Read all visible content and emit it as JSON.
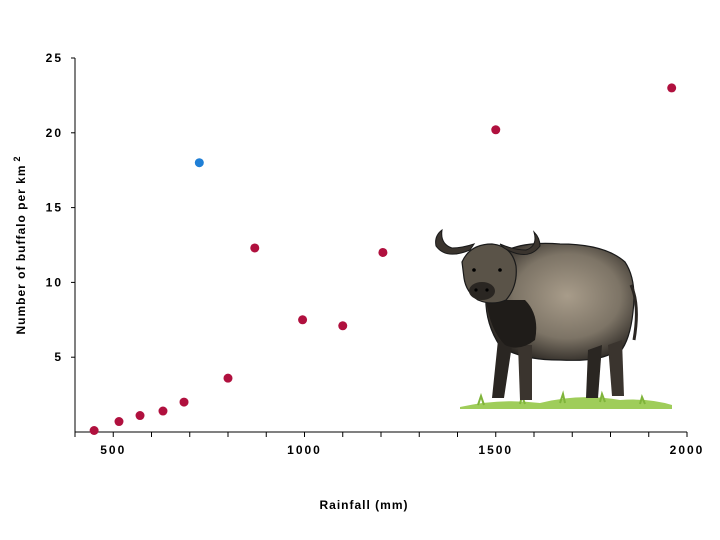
{
  "chart_data": {
    "type": "scatter",
    "title": "",
    "xlabel": "Rainfall (mm)",
    "ylabel": "Number of buffalo per km",
    "ylabel_superscript": "2",
    "xlim": [
      400,
      2000
    ],
    "ylim": [
      0,
      25
    ],
    "x_ticks": [
      500,
      1000,
      1500,
      2000
    ],
    "y_ticks": [
      5,
      10,
      15,
      20,
      25
    ],
    "x_minor_step": 100,
    "grid": false,
    "series": [
      {
        "color": "#b0103e",
        "points": [
          {
            "x": 450,
            "y": 0.1
          },
          {
            "x": 515,
            "y": 0.7
          },
          {
            "x": 570,
            "y": 1.1
          },
          {
            "x": 630,
            "y": 1.4
          },
          {
            "x": 685,
            "y": 2.0
          },
          {
            "x": 800,
            "y": 3.6
          },
          {
            "x": 870,
            "y": 12.3
          },
          {
            "x": 995,
            "y": 7.5
          },
          {
            "x": 1100,
            "y": 7.1
          },
          {
            "x": 1205,
            "y": 12.0
          },
          {
            "x": 1500,
            "y": 20.2
          },
          {
            "x": 1960,
            "y": 23.0
          }
        ]
      },
      {
        "color": "#1f7fd6",
        "points": [
          {
            "x": 725,
            "y": 18.0
          }
        ]
      }
    ],
    "illustration": "buffalo-illustration"
  }
}
